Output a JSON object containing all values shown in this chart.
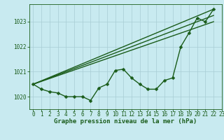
{
  "title": "Graphe pression niveau de la mer (hPa)",
  "background_color": "#c8eaf0",
  "grid_color": "#a8ccd4",
  "line_color": "#1a5c1a",
  "xlim": [
    -0.5,
    23
  ],
  "ylim": [
    1019.5,
    1023.7
  ],
  "xticks": [
    0,
    1,
    2,
    3,
    4,
    5,
    6,
    7,
    8,
    9,
    10,
    11,
    12,
    13,
    14,
    15,
    16,
    17,
    18,
    19,
    20,
    21,
    22,
    23
  ],
  "yticks": [
    1020,
    1021,
    1022,
    1023
  ],
  "main_x": [
    0,
    1,
    2,
    3,
    4,
    5,
    6,
    7,
    8,
    9,
    10,
    11,
    12,
    13,
    14,
    15,
    16,
    17,
    18,
    19,
    20,
    21,
    22
  ],
  "main_y": [
    1020.5,
    1020.3,
    1020.2,
    1020.15,
    1020.0,
    1020.0,
    1020.0,
    1019.85,
    1020.35,
    1020.5,
    1021.05,
    1021.1,
    1020.75,
    1020.5,
    1020.3,
    1020.3,
    1020.65,
    1020.75,
    1022.0,
    1022.55,
    1023.15,
    1023.0,
    1023.5
  ],
  "trend_lines": [
    {
      "x": [
        0,
        22
      ],
      "y": [
        1020.5,
        1023.5
      ]
    },
    {
      "x": [
        0,
        22
      ],
      "y": [
        1020.5,
        1023.25
      ]
    },
    {
      "x": [
        0,
        22
      ],
      "y": [
        1020.5,
        1023.0
      ]
    }
  ],
  "marker_size": 2.5,
  "line_width": 1.0,
  "tick_labelsize": 5.5,
  "xlabel_fontsize": 6.5
}
